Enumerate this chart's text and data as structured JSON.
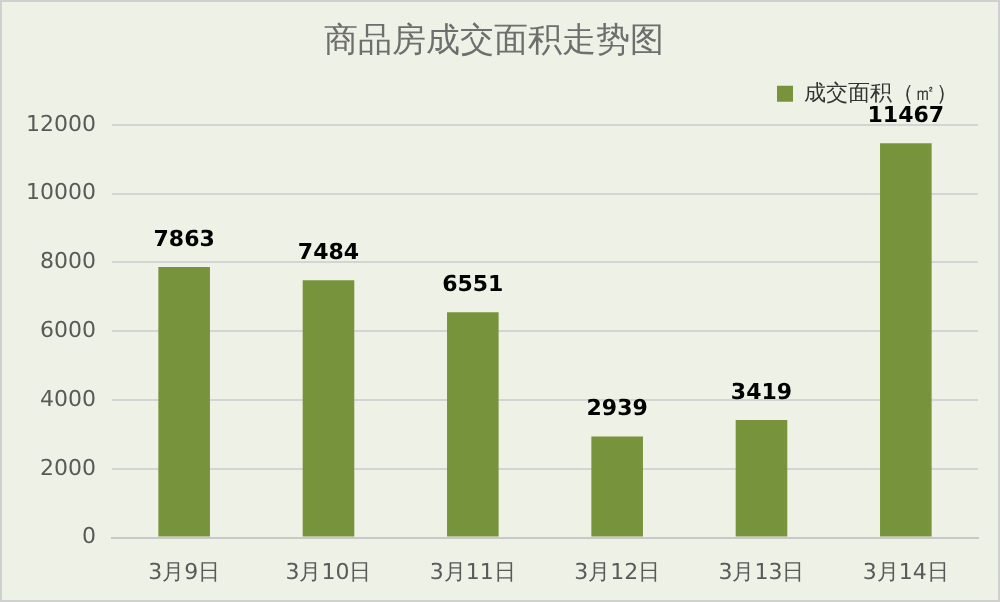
{
  "chart_data": {
    "type": "bar",
    "title": "商品房成交面积走势图",
    "categories": [
      "3月9日",
      "3月10日",
      "3月11日",
      "3月12日",
      "3月13日",
      "3月14日"
    ],
    "series": [
      {
        "name": "成交面积（㎡）",
        "color": "#77933c",
        "values": [
          7863,
          7484,
          6551,
          2939,
          3419,
          11467
        ]
      }
    ],
    "ylim": [
      0,
      12000
    ],
    "yticks": [
      0,
      2000,
      4000,
      6000,
      8000,
      10000,
      12000
    ],
    "grid": "y",
    "legend": "top right",
    "data_labels": true
  }
}
